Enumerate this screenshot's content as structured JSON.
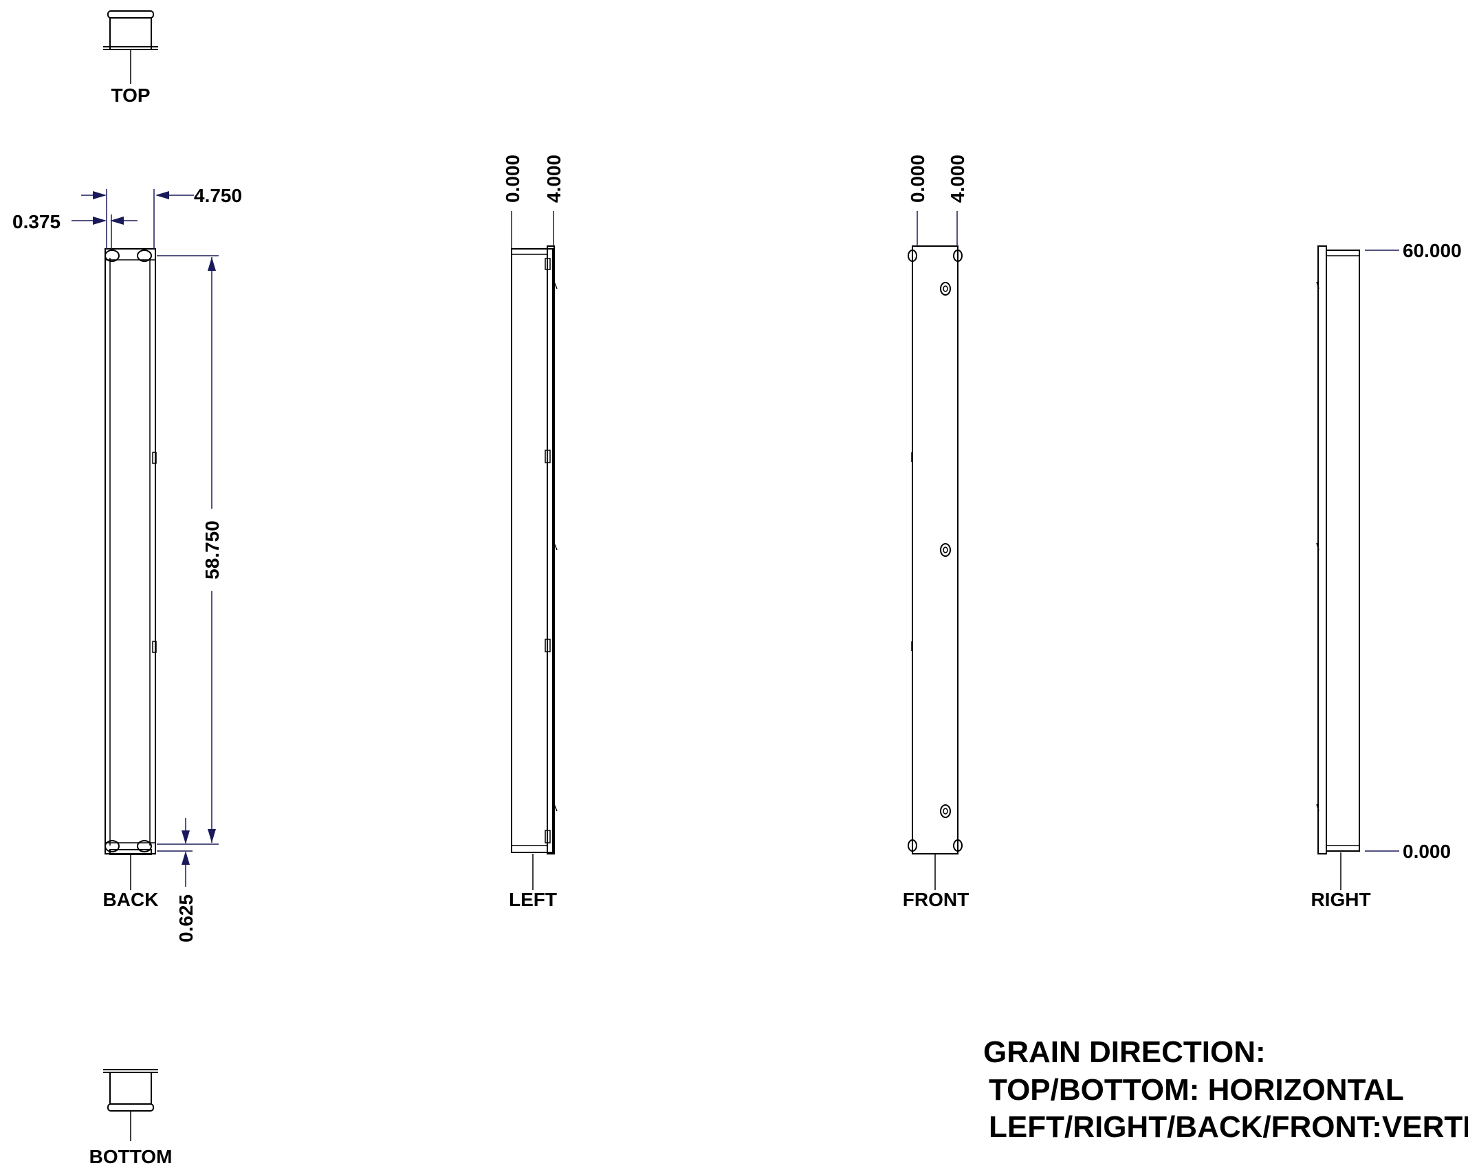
{
  "views": {
    "top": "TOP",
    "back": "BACK",
    "left": "LEFT",
    "front": "FRONT",
    "right": "RIGHT",
    "bottom": "BOTTOM"
  },
  "dimensions": {
    "back_width_outer": "4.750",
    "back_thickness": "0.375",
    "back_height": "58.750",
    "back_bottom_offset": "0.625",
    "left_start": "0.000",
    "left_end": "4.000",
    "front_start": "0.000",
    "front_end": "4.000",
    "right_top": "60.000",
    "right_bottom": "0.000"
  },
  "notes": {
    "line1": "GRAIN DIRECTION:",
    "line2": "TOP/BOTTOM: HORIZONTAL",
    "line3": "LEFT/RIGHT/BACK/FRONT:VERTICAL"
  }
}
